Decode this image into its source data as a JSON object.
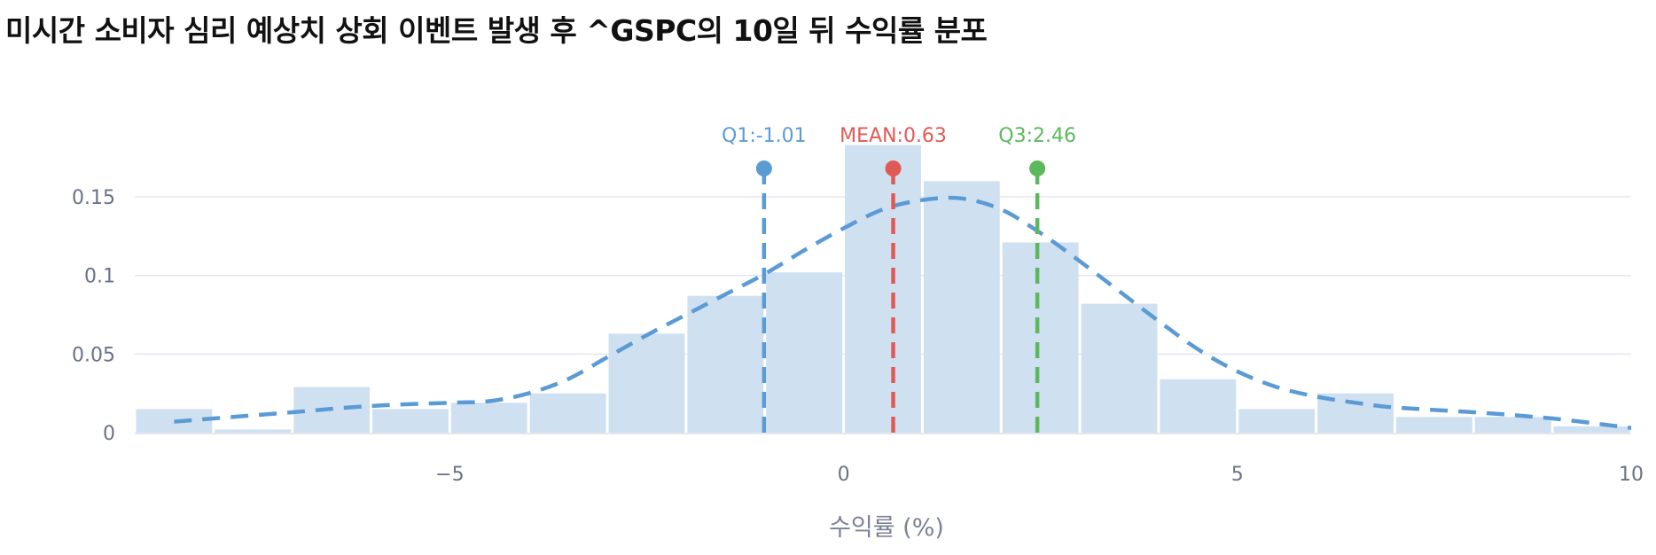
{
  "chart_data": {
    "type": "bar",
    "title": "미시간 소비자 심리 예상치 상회 이벤트 발생 후 ^GSPC의 10일 뒤 수익률 분포",
    "xlabel": "수익률 (%)",
    "ylabel": "",
    "xlim": [
      -9,
      10
    ],
    "ylim": [
      0,
      0.185
    ],
    "x_ticks": [
      {
        "value": -5,
        "label": "−5"
      },
      {
        "value": 0,
        "label": "0"
      },
      {
        "value": 5,
        "label": "5"
      },
      {
        "value": 10,
        "label": "10"
      }
    ],
    "y_ticks": [
      {
        "value": 0,
        "label": "0"
      },
      {
        "value": 0.05,
        "label": "0.05"
      },
      {
        "value": 0.1,
        "label": "0.1"
      },
      {
        "value": 0.15,
        "label": "0.15"
      }
    ],
    "grid": true,
    "histogram": {
      "bins": [
        {
          "x0": -9,
          "x1": -8,
          "density": 0.015
        },
        {
          "x0": -8,
          "x1": -7,
          "density": 0.002
        },
        {
          "x0": -7,
          "x1": -6,
          "density": 0.029
        },
        {
          "x0": -6,
          "x1": -5,
          "density": 0.015
        },
        {
          "x0": -5,
          "x1": -4,
          "density": 0.019
        },
        {
          "x0": -4,
          "x1": -3,
          "density": 0.025
        },
        {
          "x0": -3,
          "x1": -2,
          "density": 0.063
        },
        {
          "x0": -2,
          "x1": -1,
          "density": 0.087
        },
        {
          "x0": -1,
          "x1": 0,
          "density": 0.102
        },
        {
          "x0": 0,
          "x1": 1,
          "density": 0.183
        },
        {
          "x0": 1,
          "x1": 2,
          "density": 0.16
        },
        {
          "x0": 2,
          "x1": 3,
          "density": 0.121
        },
        {
          "x0": 3,
          "x1": 4,
          "density": 0.082
        },
        {
          "x0": 4,
          "x1": 5,
          "density": 0.034
        },
        {
          "x0": 5,
          "x1": 6,
          "density": 0.015
        },
        {
          "x0": 6,
          "x1": 7,
          "density": 0.025
        },
        {
          "x0": 7,
          "x1": 8,
          "density": 0.01
        },
        {
          "x0": 8,
          "x1": 9,
          "density": 0.01
        },
        {
          "x0": 9,
          "x1": 10,
          "density": 0.004
        }
      ],
      "color": "#cfe0f1"
    },
    "kde_curve": {
      "style": "dashed",
      "color": "#5b9bd5",
      "points": [
        [
          -8.5,
          0.007
        ],
        [
          -8,
          0.009
        ],
        [
          -7,
          0.013
        ],
        [
          -6,
          0.017
        ],
        [
          -5,
          0.019
        ],
        [
          -4.5,
          0.02
        ],
        [
          -4,
          0.025
        ],
        [
          -3.5,
          0.034
        ],
        [
          -3,
          0.048
        ],
        [
          -2.5,
          0.062
        ],
        [
          -2,
          0.075
        ],
        [
          -1.5,
          0.088
        ],
        [
          -1,
          0.101
        ],
        [
          -0.5,
          0.116
        ],
        [
          0,
          0.13
        ],
        [
          0.5,
          0.142
        ],
        [
          1,
          0.148
        ],
        [
          1.5,
          0.149
        ],
        [
          2,
          0.142
        ],
        [
          2.5,
          0.127
        ],
        [
          3,
          0.109
        ],
        [
          3.5,
          0.09
        ],
        [
          4,
          0.071
        ],
        [
          4.5,
          0.053
        ],
        [
          5,
          0.039
        ],
        [
          5.5,
          0.029
        ],
        [
          6,
          0.023
        ],
        [
          6.5,
          0.019
        ],
        [
          7,
          0.016
        ],
        [
          8,
          0.013
        ],
        [
          9,
          0.009
        ],
        [
          10,
          0.003
        ]
      ]
    },
    "markers": [
      {
        "name": "q1",
        "label": "Q1:-1.01",
        "value": -1.01,
        "color": "#5b9bd5"
      },
      {
        "name": "mean",
        "label": "MEAN:0.63",
        "value": 0.63,
        "color": "#e05a55"
      },
      {
        "name": "q3",
        "label": "Q3:2.46",
        "value": 2.46,
        "color": "#5cb85c"
      }
    ],
    "gridline_color": "#e3e7ef",
    "axis_color": "#e3e7ef"
  }
}
